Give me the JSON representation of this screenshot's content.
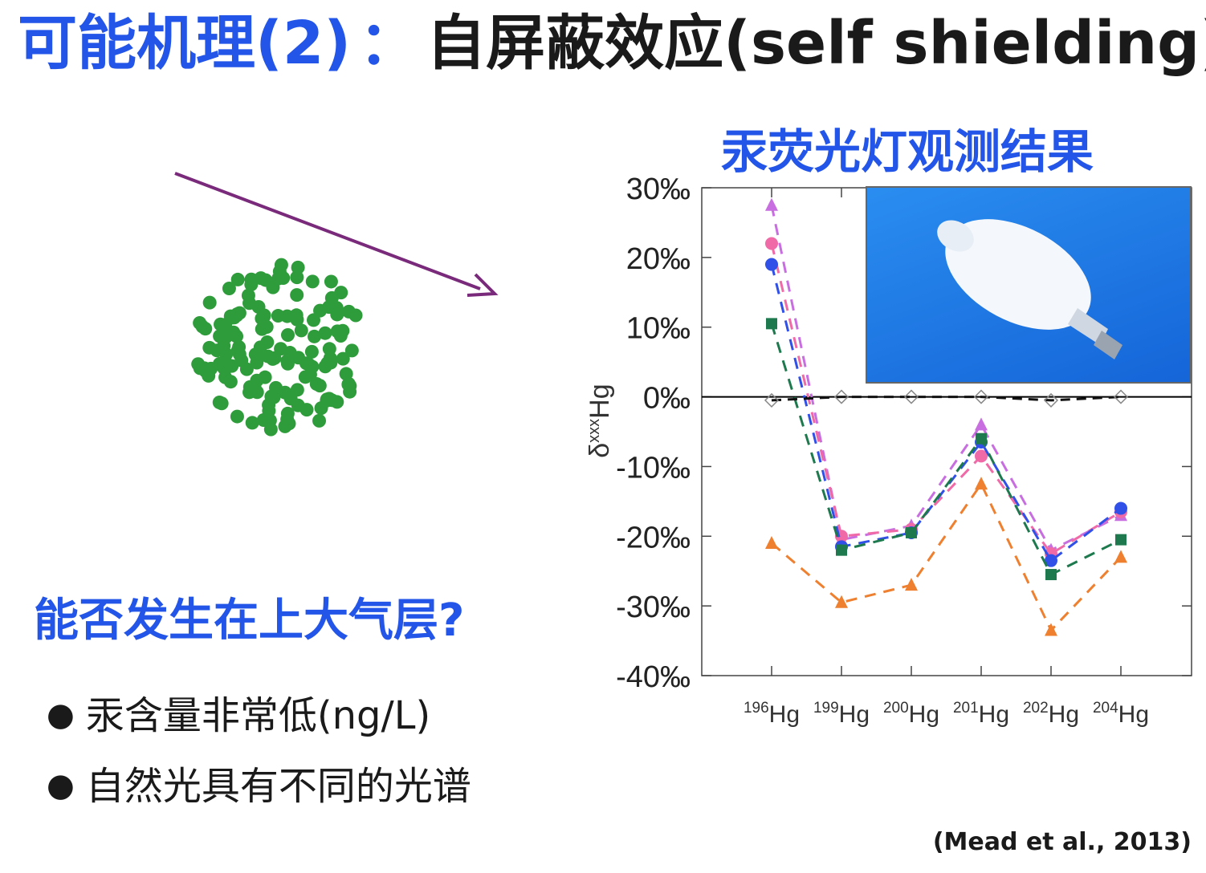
{
  "title": {
    "part1": "可能机理(2)",
    "sep": "：",
    "part2": "自屏蔽效应(self shielding)"
  },
  "chart_title": "汞荧光灯观测结果",
  "question": "能否发生在上大气层?",
  "bullets": [
    "汞含量非常低(ng/L)",
    "自然光具有不同的光谱"
  ],
  "citation": "(Mead et al., 2013)",
  "colors": {
    "accent": "#2255e8",
    "wave_blue": "#5555dd",
    "wave_red": "#e05555",
    "particles": "#2e9c3a",
    "arrow": "#7a2a7a"
  },
  "chart_data": {
    "type": "line",
    "ylabel_main": "δ",
    "ylabel_sup": "xxx",
    "ylabel_rest": "Hg",
    "ylim": [
      -40,
      30
    ],
    "yticks": [
      30,
      20,
      10,
      0,
      -10,
      -20,
      -30,
      -40
    ],
    "ytick_labels": [
      "30‰",
      "20‰",
      "10‰",
      "0‰",
      "-10‰",
      "-20‰",
      "-30‰",
      "-40‰"
    ],
    "categories": [
      {
        "sup": "196",
        "base": "Hg"
      },
      {
        "sup": "199",
        "base": "Hg"
      },
      {
        "sup": "200",
        "base": "Hg"
      },
      {
        "sup": "201",
        "base": "Hg"
      },
      {
        "sup": "202",
        "base": "Hg"
      },
      {
        "sup": "204",
        "base": "Hg"
      }
    ],
    "series": [
      {
        "values": [
          27.5,
          -20.5,
          -18.5,
          -4.0,
          -22.0,
          -17.0
        ],
        "color": "#c86ee0",
        "marker": "triangle"
      },
      {
        "values": [
          22.0,
          -20.0,
          -19.0,
          -8.5,
          -22.5,
          -16.5
        ],
        "color": "#f06aa8",
        "marker": "circle"
      },
      {
        "values": [
          19.0,
          -21.5,
          -19.5,
          -6.5,
          -23.5,
          -16.0
        ],
        "color": "#3050e8",
        "marker": "circle"
      },
      {
        "values": [
          10.5,
          -22.0,
          -19.5,
          -6.0,
          -25.5,
          -20.5
        ],
        "color": "#1e7a4e",
        "marker": "square"
      },
      {
        "values": [
          -21.0,
          -29.5,
          -27.0,
          -12.5,
          -33.5,
          -23.0
        ],
        "color": "#ee8030",
        "marker": "triangle"
      },
      {
        "values": [
          -0.5,
          0.0,
          0.0,
          0.0,
          -0.5,
          0.0
        ],
        "color": "#111111",
        "marker": "open-diamond"
      }
    ]
  }
}
